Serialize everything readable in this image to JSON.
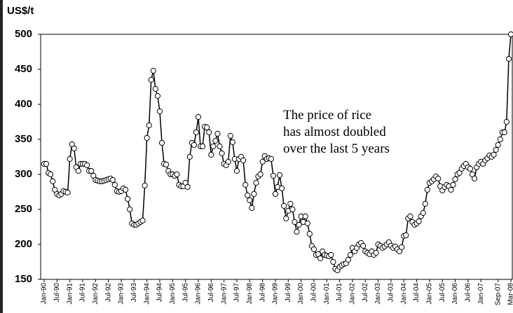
{
  "chart_data": {
    "type": "line",
    "title": "US$/t",
    "annotation": [
      "The price of rice",
      "has almost doubled",
      "over the last 5 years"
    ],
    "categories": [
      "Jan-90",
      null,
      null,
      null,
      null,
      null,
      "Jul-90",
      null,
      null,
      null,
      null,
      null,
      "Jan-91",
      null,
      null,
      null,
      null,
      null,
      "Jul-91",
      null,
      null,
      null,
      null,
      null,
      "Jan-92",
      null,
      null,
      null,
      null,
      null,
      "Jul-92",
      null,
      null,
      null,
      null,
      null,
      "Jan-93",
      null,
      null,
      null,
      null,
      null,
      "Jul-93",
      null,
      null,
      null,
      null,
      null,
      "Jan-94",
      null,
      null,
      null,
      null,
      null,
      "Jul-94",
      null,
      null,
      null,
      null,
      null,
      "Jan-95",
      null,
      null,
      null,
      null,
      null,
      "Jul-95",
      null,
      null,
      null,
      null,
      null,
      "Jan-96",
      null,
      null,
      null,
      null,
      null,
      "Jul-96",
      null,
      null,
      null,
      null,
      null,
      "Jan-97",
      null,
      null,
      null,
      null,
      null,
      "Jul-97",
      null,
      null,
      null,
      null,
      null,
      "Jan-98",
      null,
      null,
      null,
      null,
      null,
      "Jul-98",
      null,
      null,
      null,
      null,
      null,
      "Jan-99",
      null,
      null,
      null,
      null,
      null,
      "Jul-99",
      null,
      null,
      null,
      null,
      null,
      "Jan-00",
      null,
      null,
      null,
      null,
      null,
      "Jul-00",
      null,
      null,
      null,
      null,
      null,
      "Jan-01",
      null,
      null,
      null,
      null,
      null,
      "Jul-01",
      null,
      null,
      null,
      null,
      null,
      "Jan-02",
      null,
      null,
      null,
      null,
      null,
      "Jul-02",
      null,
      null,
      null,
      null,
      null,
      "Jan-03",
      null,
      null,
      null,
      null,
      null,
      "Jul-03",
      null,
      null,
      null,
      null,
      null,
      "Jan-04",
      null,
      null,
      null,
      null,
      null,
      "Jul-04",
      null,
      null,
      null,
      null,
      null,
      "Jan-05",
      null,
      null,
      null,
      null,
      null,
      "Jul-05",
      null,
      null,
      null,
      null,
      null,
      "Jan-06",
      null,
      null,
      null,
      null,
      null,
      "Jul-06",
      null,
      null,
      null,
      null,
      null,
      "Jan-07",
      null,
      null,
      null,
      null,
      null,
      null,
      null,
      "Sep-07",
      null,
      null,
      null,
      null,
      null,
      "Mar-08"
    ],
    "values": [
      315,
      315,
      302,
      300,
      290,
      278,
      272,
      270,
      272,
      276,
      275,
      274,
      322,
      343,
      337,
      310,
      305,
      315,
      315,
      315,
      313,
      305,
      305,
      298,
      292,
      291,
      290,
      290,
      291,
      292,
      293,
      294,
      292,
      285,
      276,
      275,
      276,
      280,
      278,
      265,
      250,
      230,
      228,
      228,
      230,
      232,
      234,
      284,
      352,
      370,
      435,
      448,
      422,
      412,
      390,
      345,
      315,
      314,
      305,
      300,
      300,
      298,
      300,
      285,
      283,
      283,
      288,
      282,
      325,
      345,
      342,
      360,
      382,
      340,
      340,
      368,
      367,
      360,
      328,
      340,
      348,
      358,
      340,
      330,
      315,
      313,
      318,
      355,
      346,
      322,
      305,
      322,
      325,
      320,
      285,
      270,
      263,
      252,
      272,
      288,
      297,
      300,
      318,
      326,
      322,
      323,
      322,
      298,
      272,
      282,
      299,
      280,
      255,
      237,
      248,
      258,
      250,
      232,
      218,
      228,
      240,
      232,
      240,
      230,
      215,
      198,
      193,
      185,
      186,
      180,
      190,
      185,
      184,
      183,
      185,
      175,
      165,
      163,
      168,
      170,
      172,
      173,
      178,
      185,
      195,
      190,
      195,
      200,
      202,
      198,
      190,
      188,
      186,
      190,
      185,
      188,
      200,
      198,
      195,
      197,
      200,
      203,
      198,
      195,
      197,
      193,
      190,
      196,
      212,
      213,
      237,
      240,
      232,
      228,
      230,
      233,
      240,
      245,
      258,
      278,
      288,
      290,
      293,
      297,
      294,
      283,
      277,
      282,
      285,
      283,
      278,
      285,
      293,
      300,
      302,
      308,
      312,
      315,
      310,
      308,
      300,
      294,
      310,
      315,
      318,
      315,
      320,
      323,
      327,
      325,
      328,
      335,
      342,
      350,
      360,
      360,
      375,
      465,
      500
    ],
    "color": "#000000",
    "ylim": [
      150,
      500
    ],
    "yticks": [
      150,
      200,
      250,
      300,
      350,
      400,
      450,
      500
    ]
  }
}
